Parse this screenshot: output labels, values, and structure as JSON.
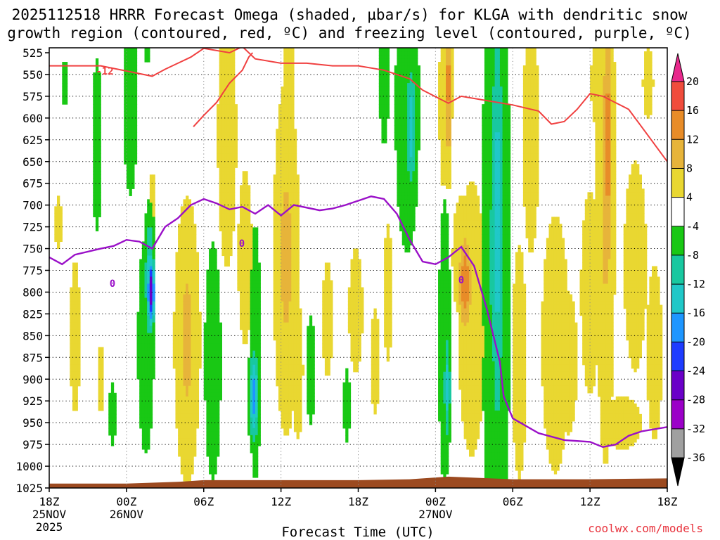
{
  "chart_data": {
    "type": "time-height contour",
    "title_line1": "2025112518 HRRR Forecast Omega (shaded, µbar/s) for KLGA with dendritic snow",
    "title_line2": "growth region (contoured, red, ºC) and freezing level (contoured, purple, ºC)",
    "xlabel": "Forecast Time (UTC)",
    "credit": "coolwx.com/models",
    "x_hours": [
      0,
      6,
      12,
      18,
      24,
      30,
      36,
      42,
      48
    ],
    "x_ticks": [
      {
        "hour": 0,
        "label": "18Z",
        "date": "25NOV",
        "year": "2025"
      },
      {
        "hour": 6,
        "label": "00Z",
        "date": "26NOV",
        "year": ""
      },
      {
        "hour": 12,
        "label": "06Z",
        "date": "",
        "year": ""
      },
      {
        "hour": 18,
        "label": "12Z",
        "date": "",
        "year": ""
      },
      {
        "hour": 24,
        "label": "18Z",
        "date": "",
        "year": ""
      },
      {
        "hour": 30,
        "label": "00Z",
        "date": "27NOV",
        "year": ""
      },
      {
        "hour": 36,
        "label": "06Z",
        "date": "",
        "year": ""
      },
      {
        "hour": 42,
        "label": "12Z",
        "date": "",
        "year": ""
      },
      {
        "hour": 48,
        "label": "18Z",
        "date": "",
        "year": ""
      }
    ],
    "y_levels_hPa": [
      525,
      550,
      575,
      600,
      625,
      650,
      675,
      700,
      725,
      750,
      775,
      800,
      825,
      850,
      875,
      900,
      925,
      950,
      975,
      1000,
      1025
    ],
    "ylim": [
      525,
      1025
    ],
    "colorbar": {
      "levels": [
        -36,
        -32,
        -28,
        -24,
        -20,
        -16,
        -12,
        -8,
        -4,
        4,
        8,
        12,
        16,
        20
      ],
      "colors": [
        "#000000",
        "#a0a0a0",
        "#9b00c8",
        "#6a00c8",
        "#1e3cff",
        "#1e96ff",
        "#20c8c8",
        "#18c8a0",
        "#19c814",
        "#ffffff",
        "#e9d731",
        "#e7b43a",
        "#e88c28",
        "#f04c3c",
        "#e8288c"
      ]
    },
    "dendritic_label": "-12",
    "dendritic_line": [
      [
        0,
        540
      ],
      [
        4,
        540
      ],
      [
        6,
        546
      ],
      [
        8,
        552
      ],
      [
        9,
        544
      ],
      [
        11,
        530
      ],
      [
        12,
        520
      ],
      [
        14,
        525
      ],
      [
        15,
        518
      ],
      [
        16,
        532
      ],
      [
        18,
        537
      ],
      [
        20,
        537
      ],
      [
        22,
        540
      ],
      [
        24,
        540
      ],
      [
        26,
        545
      ],
      [
        28,
        555
      ],
      [
        29,
        568
      ],
      [
        31,
        583
      ],
      [
        32,
        575
      ],
      [
        34,
        580
      ],
      [
        36,
        585
      ],
      [
        38,
        592
      ],
      [
        39,
        607
      ],
      [
        40,
        604
      ],
      [
        41,
        590
      ],
      [
        42,
        572
      ],
      [
        43,
        575
      ],
      [
        45,
        590
      ],
      [
        46,
        610
      ],
      [
        48,
        650
      ]
    ],
    "dendritic_line2": [
      [
        11.2,
        610
      ],
      [
        12,
        597
      ],
      [
        13,
        582
      ],
      [
        14,
        560
      ],
      [
        15,
        545
      ],
      [
        15.5,
        530
      ],
      [
        15.8,
        525
      ]
    ],
    "freezing_label": "0",
    "freezing_line": [
      [
        0,
        760
      ],
      [
        1,
        768
      ],
      [
        2,
        757
      ],
      [
        4,
        750
      ],
      [
        5,
        747
      ],
      [
        6,
        740
      ],
      [
        7,
        742
      ],
      [
        8,
        750
      ],
      [
        9,
        725
      ],
      [
        10,
        715
      ],
      [
        11,
        700
      ],
      [
        12,
        693
      ],
      [
        13,
        698
      ],
      [
        14,
        705
      ],
      [
        15,
        702
      ],
      [
        16,
        710
      ],
      [
        17,
        700
      ],
      [
        18,
        712
      ],
      [
        19,
        700
      ],
      [
        21,
        706
      ],
      [
        22,
        704
      ],
      [
        23,
        700
      ],
      [
        24,
        695
      ],
      [
        25,
        690
      ],
      [
        26,
        693
      ],
      [
        27,
        710
      ],
      [
        28,
        740
      ],
      [
        29,
        765
      ],
      [
        30,
        768
      ],
      [
        31,
        760
      ],
      [
        32,
        748
      ],
      [
        33,
        770
      ],
      [
        34,
        820
      ],
      [
        35,
        880
      ],
      [
        35.3,
        920
      ],
      [
        36,
        945
      ],
      [
        38,
        962
      ],
      [
        40,
        970
      ],
      [
        42,
        972
      ],
      [
        43,
        978
      ],
      [
        44,
        975
      ],
      [
        45,
        965
      ],
      [
        46,
        960
      ],
      [
        48,
        955
      ]
    ],
    "omega_blobs": [
      {
        "v": 5,
        "h": 0.7,
        "p": 720,
        "sh": 0.4,
        "sp": 45
      },
      {
        "v": 5,
        "h": 2.0,
        "p": 850,
        "sh": 0.6,
        "sp": 130
      },
      {
        "v": 5,
        "h": 4.0,
        "p": 900,
        "sh": 0.4,
        "sp": 60
      },
      {
        "v": -6,
        "h": 1.2,
        "p": 560,
        "sh": 0.3,
        "sp": 30
      },
      {
        "v": -6,
        "h": 3.7,
        "p": 630,
        "sh": 0.4,
        "sp": 110
      },
      {
        "v": -6,
        "h": 6.3,
        "p": 580,
        "sh": 0.6,
        "sp": 120
      },
      {
        "v": -6,
        "h": 7.6,
        "p": 500,
        "sh": 0.4,
        "sp": 40
      },
      {
        "v": 5,
        "h": 8.0,
        "p": 690,
        "sh": 0.3,
        "sp": 40
      },
      {
        "v": -6,
        "h": 7.5,
        "p": 860,
        "sh": 0.7,
        "sp": 140
      },
      {
        "v": -14,
        "h": 7.8,
        "p": 785,
        "sh": 0.3,
        "sp": 60
      },
      {
        "v": -28,
        "h": 7.9,
        "p": 800,
        "sh": 0.2,
        "sp": 30
      },
      {
        "v": -6,
        "h": 4.9,
        "p": 940,
        "sh": 0.3,
        "sp": 40
      },
      {
        "v": 9,
        "h": 10.7,
        "p": 855,
        "sh": 0.8,
        "sp": 130
      },
      {
        "v": 6,
        "h": 10.5,
        "p": 920,
        "sh": 0.5,
        "sp": 70
      },
      {
        "v": -7,
        "h": 12.7,
        "p": 880,
        "sh": 0.6,
        "sp": 130
      },
      {
        "v": 6,
        "h": 13.8,
        "p": 620,
        "sh": 0.8,
        "sp": 170
      },
      {
        "v": 6,
        "h": 15.2,
        "p": 760,
        "sh": 0.6,
        "sp": 110
      },
      {
        "v": -7,
        "h": 16.0,
        "p": 870,
        "sh": 0.4,
        "sp": 140
      },
      {
        "v": -18,
        "h": 15.9,
        "p": 920,
        "sh": 0.3,
        "sp": 40
      },
      {
        "v": 9,
        "h": 18.4,
        "p": 760,
        "sh": 0.8,
        "sp": 160
      },
      {
        "v": 6,
        "h": 18.6,
        "p": 560,
        "sh": 0.5,
        "sp": 80
      },
      {
        "v": 5,
        "h": 19.3,
        "p": 890,
        "sh": 0.6,
        "sp": 120
      },
      {
        "v": -7,
        "h": 20.3,
        "p": 890,
        "sh": 0.3,
        "sp": 60
      },
      {
        "v": 5,
        "h": 21.6,
        "p": 830,
        "sh": 0.6,
        "sp": 100
      },
      {
        "v": -7,
        "h": 23.1,
        "p": 930,
        "sh": 0.25,
        "sp": 40
      },
      {
        "v": 6,
        "h": 23.8,
        "p": 820,
        "sh": 0.6,
        "sp": 80
      },
      {
        "v": 5,
        "h": 25.3,
        "p": 880,
        "sh": 0.5,
        "sp": 90
      },
      {
        "v": 5,
        "h": 26.3,
        "p": 800,
        "sh": 0.5,
        "sp": 120
      },
      {
        "v": -6,
        "h": 26.0,
        "p": 560,
        "sh": 0.4,
        "sp": 80
      },
      {
        "v": -8,
        "h": 27.8,
        "p": 590,
        "sh": 0.8,
        "sp": 140
      },
      {
        "v": -14,
        "h": 28.1,
        "p": 610,
        "sh": 0.3,
        "sp": 60
      },
      {
        "v": 5,
        "h": 30.6,
        "p": 580,
        "sh": 0.5,
        "sp": 150
      },
      {
        "v": 14,
        "h": 31.0,
        "p": 560,
        "sh": 0.2,
        "sp": 80
      },
      {
        "v": -8,
        "h": 30.7,
        "p": 860,
        "sh": 0.4,
        "sp": 140
      },
      {
        "v": -14,
        "h": 30.9,
        "p": 910,
        "sh": 0.2,
        "sp": 50
      },
      {
        "v": 8,
        "h": 32.0,
        "p": 760,
        "sh": 0.6,
        "sp": 60
      },
      {
        "v": 15,
        "h": 32.3,
        "p": 790,
        "sh": 0.4,
        "sp": 45
      },
      {
        "v": 7,
        "h": 32.8,
        "p": 830,
        "sh": 1.0,
        "sp": 150
      },
      {
        "v": -9,
        "h": 34.7,
        "p": 760,
        "sh": 0.9,
        "sp": 280
      },
      {
        "v": -14,
        "h": 34.8,
        "p": 720,
        "sh": 0.4,
        "sp": 210
      },
      {
        "v": 6,
        "h": 37.4,
        "p": 620,
        "sh": 0.7,
        "sp": 150
      },
      {
        "v": 6,
        "h": 36.5,
        "p": 880,
        "sh": 0.6,
        "sp": 150
      },
      {
        "v": 7,
        "h": 39.3,
        "p": 860,
        "sh": 1.0,
        "sp": 140
      },
      {
        "v": 8,
        "h": 40.3,
        "p": 880,
        "sh": 0.6,
        "sp": 70
      },
      {
        "v": 6,
        "h": 42.0,
        "p": 800,
        "sh": 0.8,
        "sp": 130
      },
      {
        "v": 9,
        "h": 43.2,
        "p": 670,
        "sh": 0.6,
        "sp": 260
      },
      {
        "v": 15,
        "h": 43.4,
        "p": 630,
        "sh": 0.2,
        "sp": 130
      },
      {
        "v": 5,
        "h": 42.4,
        "p": 560,
        "sh": 0.5,
        "sp": 70
      },
      {
        "v": 5,
        "h": 45.5,
        "p": 770,
        "sh": 1.3,
        "sp": 180
      },
      {
        "v": 5,
        "h": 44.5,
        "p": 950,
        "sh": 2.2,
        "sp": 45
      },
      {
        "v": 5,
        "h": 47.0,
        "p": 870,
        "sh": 0.9,
        "sp": 150
      },
      {
        "v": 5,
        "h": 46.5,
        "p": 560,
        "sh": 0.6,
        "sp": 60
      }
    ],
    "terrain": [
      [
        0,
        1020
      ],
      [
        6,
        1020
      ],
      [
        10,
        1018
      ],
      [
        12,
        1016
      ],
      [
        24,
        1016
      ],
      [
        28,
        1015
      ],
      [
        31,
        1012
      ],
      [
        36,
        1015
      ],
      [
        42,
        1015
      ],
      [
        48,
        1014
      ]
    ]
  }
}
